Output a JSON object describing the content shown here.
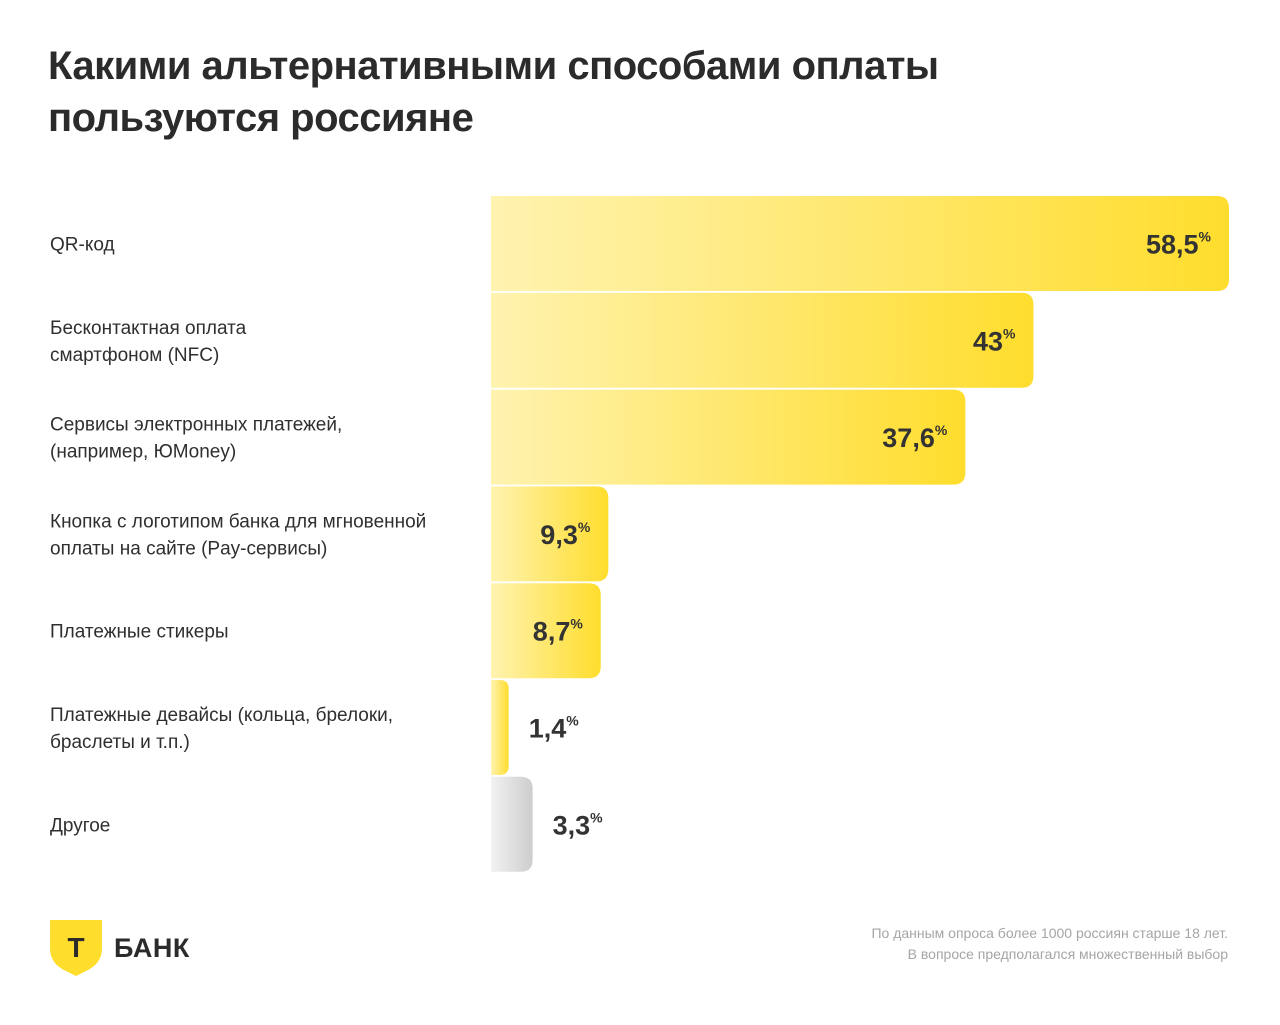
{
  "header": {
    "title_line1": "Какими альтернативными способами оплаты",
    "title_line2": "пользуются россияне"
  },
  "brand": {
    "logo_letter": "Т",
    "name": "БАНК",
    "shield_color": "#FFDD2D"
  },
  "footnote": {
    "line1": "По данным опроса более 1000 россиян старше 18 лет.",
    "line2": "В вопросе предполагался множественный выбор"
  },
  "colors": {
    "bar_light": "#FFF3B0",
    "bar_strong": "#FFDD2D",
    "other_light": "#F2F2F2",
    "other_strong": "#CDCDCD"
  },
  "chart_data": {
    "type": "bar",
    "orientation": "horizontal",
    "value_suffix": "%",
    "xlim": [
      0,
      58.5
    ],
    "grid": false,
    "categories": [
      [
        "QR-код"
      ],
      [
        "Бесконтактная оплата",
        "смартфоном (NFC)"
      ],
      [
        "Сервисы электронных платежей,",
        "(например, ЮMoney)"
      ],
      [
        "Кнопка с логотипом банка для мгновенной",
        "оплаты на сайте (Pay-сервисы)"
      ],
      [
        "Платежные стикеры"
      ],
      [
        "Платежные девайсы (кольца, брелоки,",
        "браслеты и т.п.)"
      ],
      [
        "Другое"
      ]
    ],
    "values": [
      58.5,
      43,
      37.6,
      9.3,
      8.7,
      1.4,
      3.3
    ],
    "value_labels": [
      "58,5",
      "43",
      "37,6",
      "9,3",
      "8,7",
      "1,4",
      "3,3"
    ],
    "highlight": [
      "yellow",
      "yellow",
      "yellow",
      "yellow",
      "yellow",
      "yellow",
      "gray"
    ]
  }
}
